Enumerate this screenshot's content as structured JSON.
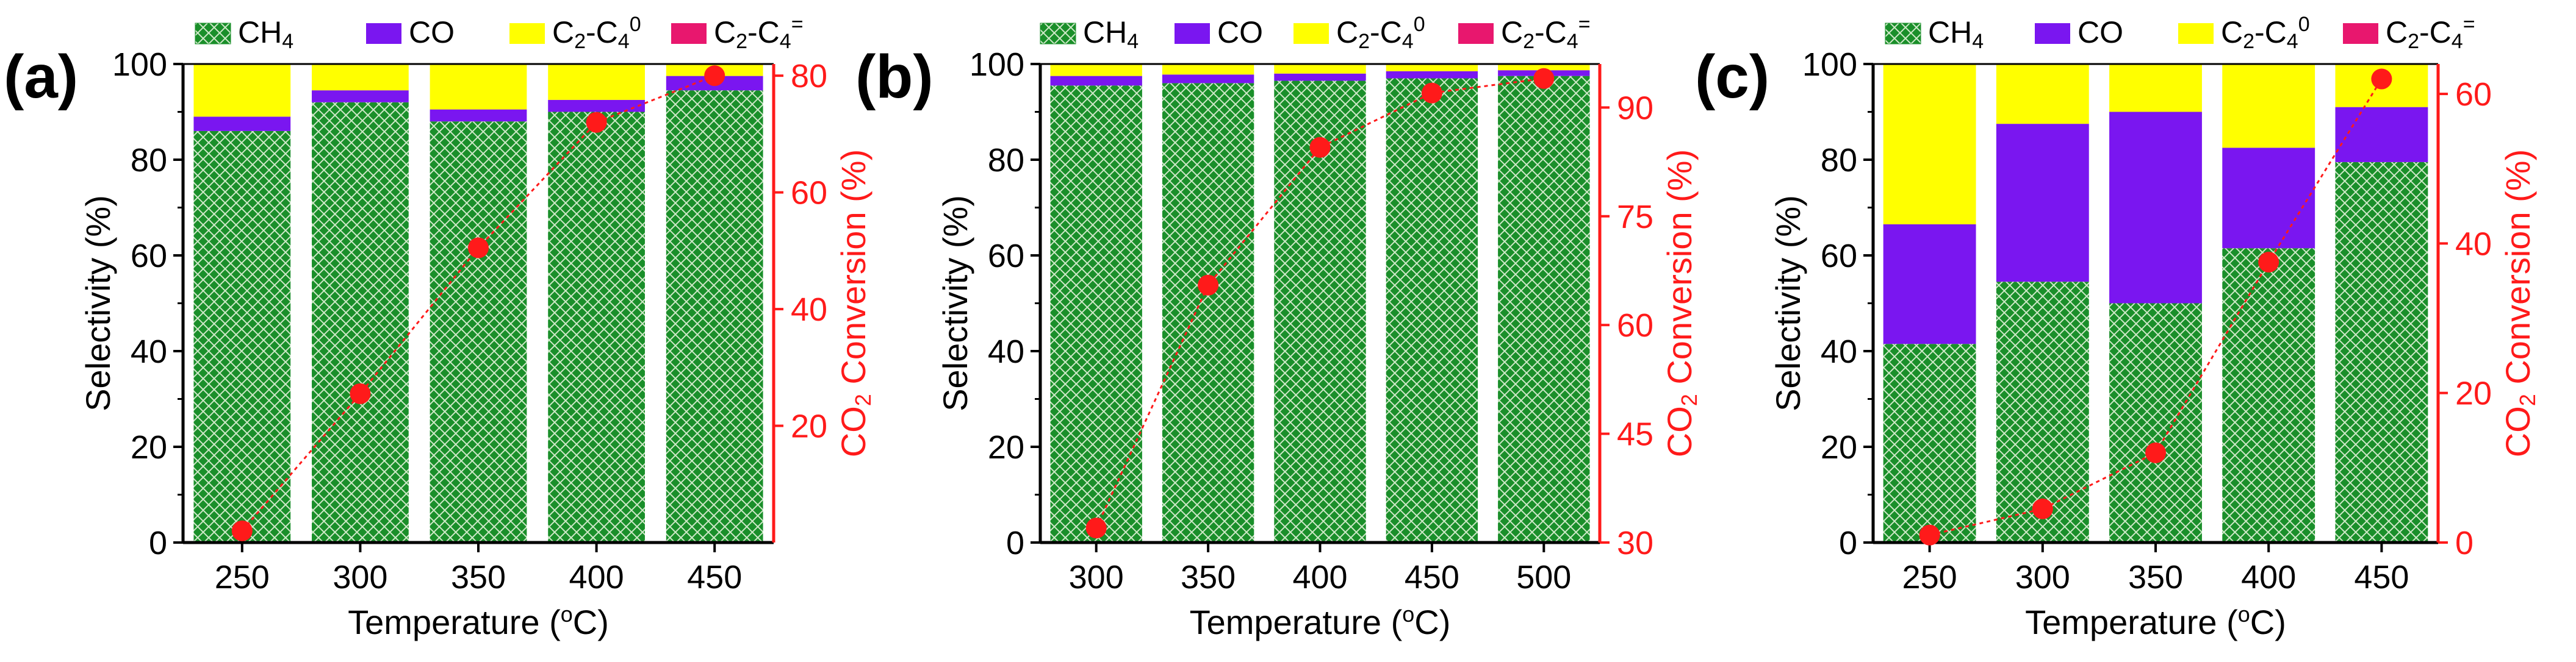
{
  "legend": [
    {
      "key": "ch4",
      "base": "CH",
      "sub": "4",
      "sup": "",
      "tail": "",
      "color": "#1a8f2a"
    },
    {
      "key": "co",
      "base": "CO",
      "sub": "",
      "sup": "",
      "tail": "",
      "color": "#7a16f0"
    },
    {
      "key": "c2c4_0",
      "base": "C",
      "sub": "2",
      "mid": "-C",
      "sub2": "4",
      "sup": "0",
      "color": "#ffff00"
    },
    {
      "key": "c2c4_eq",
      "base": "C",
      "sub": "2",
      "mid": "-C",
      "sub2": "4",
      "sup": "=",
      "color": "#e8176e"
    }
  ],
  "colors": {
    "ch4": "#1a8f2a",
    "ch4_hatch": "#cfe9c8",
    "co": "#7a16f0",
    "c2c4_0": "#ffff00",
    "c2c4_eq": "#e8176e",
    "conversion": "#ff1a1a"
  },
  "chart_data": [
    {
      "panel": "(a)",
      "type": "bar",
      "stacked": true,
      "xlabel": "Temperature (",
      "xlabel_sup": "o",
      "xlabel_tail": "C)",
      "ylabel": "Selectivity (%)",
      "y2label": "CO",
      "y2label_sub": "2",
      "y2label_tail": " Conversion (%)",
      "categories": [
        "250",
        "300",
        "350",
        "400",
        "450"
      ],
      "ylim": [
        0,
        100
      ],
      "yticks": [
        0,
        20,
        40,
        60,
        80,
        100
      ],
      "y2lim": [
        0,
        82
      ],
      "y2ticks": [
        20,
        40,
        60,
        80
      ],
      "series": [
        {
          "name": "CH4",
          "values": [
            86,
            92,
            88,
            90,
            94.5
          ]
        },
        {
          "name": "CO",
          "values": [
            3,
            2.5,
            2.5,
            2.5,
            3
          ]
        },
        {
          "name": "C2-C4 0",
          "values": [
            11,
            5.5,
            9.5,
            7.5,
            2.5
          ]
        },
        {
          "name": "C2-C4 =",
          "values": [
            0,
            0,
            0,
            0,
            0
          ]
        }
      ],
      "conversion": [
        2,
        25.5,
        50.5,
        72,
        80
      ]
    },
    {
      "panel": "(b)",
      "type": "bar",
      "stacked": true,
      "xlabel": "Temperature (",
      "xlabel_sup": "o",
      "xlabel_tail": "C)",
      "ylabel": "Selectivity (%)",
      "y2label": "CO",
      "y2label_sub": "2",
      "y2label_tail": " Conversion (%)",
      "categories": [
        "300",
        "350",
        "400",
        "450",
        "500"
      ],
      "ylim": [
        0,
        100
      ],
      "yticks": [
        0,
        20,
        40,
        60,
        80,
        100
      ],
      "y2lim": [
        30,
        96
      ],
      "y2ticks": [
        30,
        45,
        60,
        75,
        90
      ],
      "series": [
        {
          "name": "CH4",
          "values": [
            95.5,
            96,
            96.5,
            97,
            97.5
          ]
        },
        {
          "name": "CO",
          "values": [
            2,
            1.8,
            1.5,
            1.5,
            1.2
          ]
        },
        {
          "name": "C2-C4 0",
          "values": [
            2.5,
            2.2,
            2,
            1.5,
            1.3
          ]
        },
        {
          "name": "C2-C4 =",
          "values": [
            0,
            0,
            0,
            0,
            0
          ]
        }
      ],
      "conversion": [
        32,
        65.5,
        84.5,
        92,
        94
      ]
    },
    {
      "panel": "(c)",
      "type": "bar",
      "stacked": true,
      "xlabel": "Temperature (",
      "xlabel_sup": "o",
      "xlabel_tail": "C)",
      "ylabel": "Selectivity (%)",
      "y2label": "CO",
      "y2label_sub": "2",
      "y2label_tail": " Conversion (%)",
      "categories": [
        "250",
        "300",
        "350",
        "400",
        "450"
      ],
      "ylim": [
        0,
        100
      ],
      "yticks": [
        0,
        20,
        40,
        60,
        80,
        100
      ],
      "y2lim": [
        0,
        64
      ],
      "y2ticks": [
        0,
        20,
        40,
        60
      ],
      "series": [
        {
          "name": "CH4",
          "values": [
            41.5,
            54.5,
            50,
            61.5,
            79.5
          ]
        },
        {
          "name": "CO",
          "values": [
            25,
            33,
            40,
            21,
            11.5
          ]
        },
        {
          "name": "C2-C4 0",
          "values": [
            33.5,
            12.5,
            10,
            17.5,
            9
          ]
        },
        {
          "name": "C2-C4 =",
          "values": [
            0,
            0,
            0,
            0,
            0
          ]
        }
      ],
      "conversion": [
        1,
        4.5,
        12,
        37.5,
        62
      ]
    }
  ]
}
